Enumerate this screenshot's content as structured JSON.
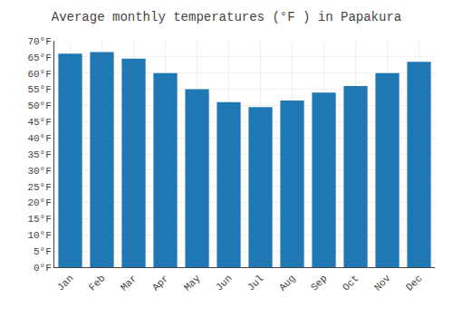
{
  "chart_data": {
    "type": "bar",
    "title": "Average monthly temperatures (°F ) in Papakura",
    "categories": [
      "Jan",
      "Feb",
      "Mar",
      "Apr",
      "May",
      "Jun",
      "Jul",
      "Aug",
      "Sep",
      "Oct",
      "Nov",
      "Dec"
    ],
    "values": [
      66,
      66.5,
      64.5,
      60,
      55,
      51,
      49.5,
      51.5,
      54,
      56,
      60,
      63.5
    ],
    "ylim": [
      0,
      70
    ],
    "yticks": [
      {
        "value": 0,
        "label": "0°F"
      },
      {
        "value": 5,
        "label": "5°F"
      },
      {
        "value": 10,
        "label": "10°F"
      },
      {
        "value": 15,
        "label": "15°F"
      },
      {
        "value": 20,
        "label": "20°F"
      },
      {
        "value": 25,
        "label": "25°F"
      },
      {
        "value": 30,
        "label": "30°F"
      },
      {
        "value": 35,
        "label": "35°F"
      },
      {
        "value": 40,
        "label": "40°F"
      },
      {
        "value": 45,
        "label": "45°F"
      },
      {
        "value": 50,
        "label": "50°F"
      },
      {
        "value": 55,
        "label": "55°F"
      },
      {
        "value": 60,
        "label": "60°F"
      },
      {
        "value": 65,
        "label": "65°F"
      },
      {
        "value": 70,
        "label": "70°F"
      }
    ],
    "grid": true
  }
}
